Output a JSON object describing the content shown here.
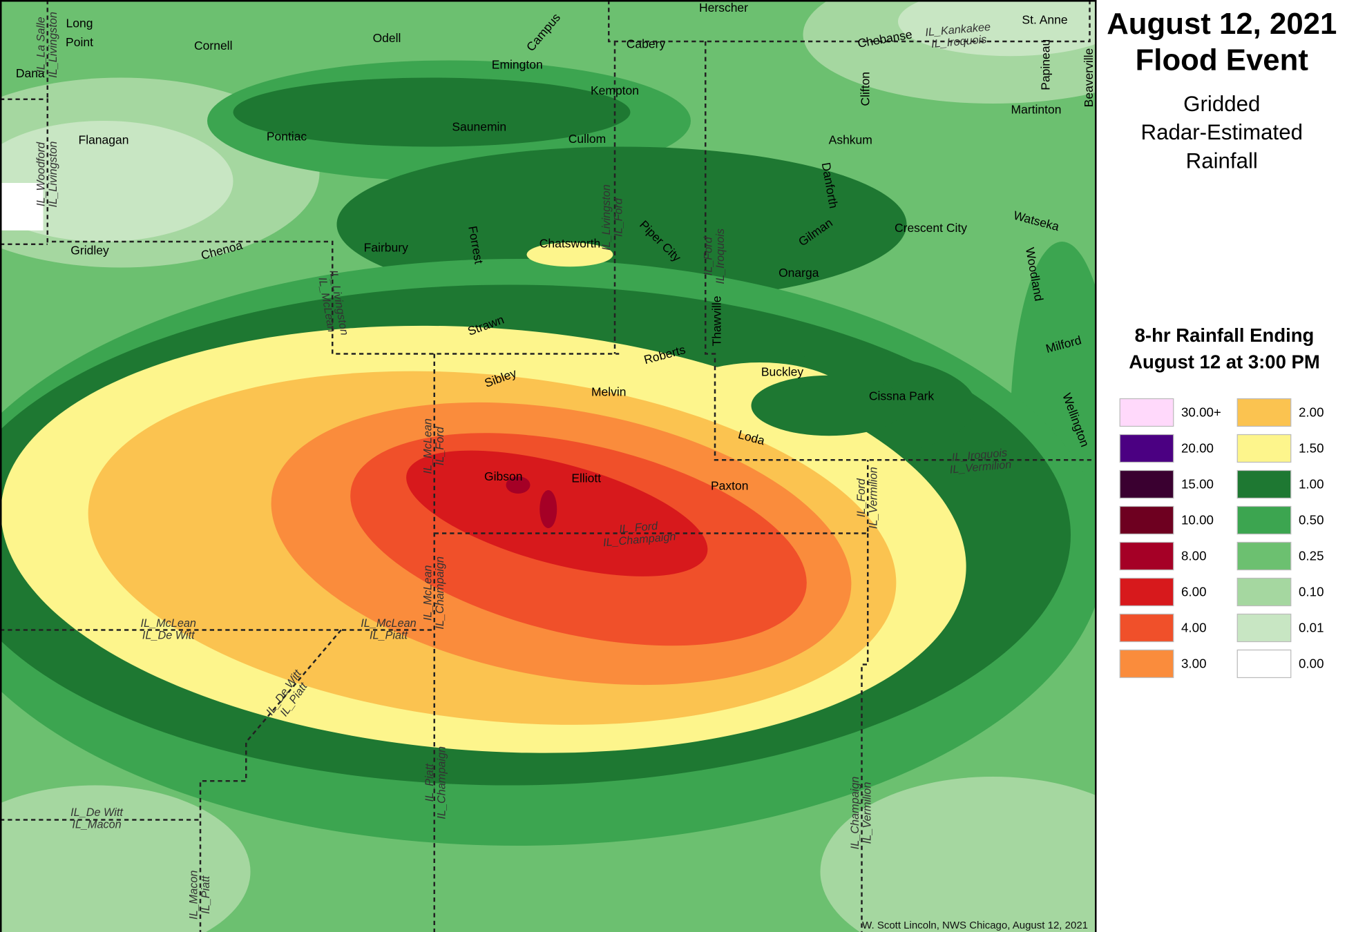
{
  "header": {
    "title_lines": [
      "August 12, 2021",
      "Flood Event"
    ],
    "subtitle_lines": [
      "Gridded",
      "Radar-Estimated",
      "Rainfall"
    ]
  },
  "legend": {
    "title_lines": [
      "8-hr Rainfall Ending",
      "August 12 at 3:00 PM"
    ],
    "entries": [
      {
        "label": "30.00+",
        "color": "#ffd9fb"
      },
      {
        "label": "20.00",
        "color": "#4b0082"
      },
      {
        "label": "15.00",
        "color": "#3a0030"
      },
      {
        "label": "10.00",
        "color": "#6e0020"
      },
      {
        "label": "8.00",
        "color": "#a50026"
      },
      {
        "label": "6.00",
        "color": "#d7191c"
      },
      {
        "label": "4.00",
        "color": "#f0502a"
      },
      {
        "label": "3.00",
        "color": "#fa8c3c"
      },
      {
        "label": "2.00",
        "color": "#fbc350"
      },
      {
        "label": "1.50",
        "color": "#fdf58c"
      },
      {
        "label": "1.00",
        "color": "#1e7832"
      },
      {
        "label": "0.50",
        "color": "#3ca550"
      },
      {
        "label": "0.25",
        "color": "#6cc070"
      },
      {
        "label": "0.10",
        "color": "#a5d7a0"
      },
      {
        "label": "0.01",
        "color": "#c8e6c3"
      },
      {
        "label": "0.00",
        "color": "#ffffff"
      }
    ]
  },
  "map": {
    "towns": [
      "Herscher",
      "St. Anne",
      "Long",
      "Point",
      "Dana",
      "Cornell",
      "Odell",
      "Campus",
      "Emington",
      "Cabery",
      "Chebanse",
      "Papineau",
      "Beaverville",
      "Kempton",
      "Martinton",
      "Clifton",
      "Flanagan",
      "Pontiac",
      "Saunemin",
      "Cullom",
      "Ashkum",
      "Danforth",
      "Watseka",
      "Crescent City",
      "Gilman",
      "Woodland",
      "Gridley",
      "Chenoa",
      "Fairbury",
      "Forrest",
      "Chatsworth",
      "Piper City",
      "Onarga",
      "Thawville",
      "Strawn",
      "Roberts",
      "Milford",
      "Buckley",
      "Sibley",
      "Melvin",
      "Cissna Park",
      "Wellington",
      "Loda",
      "Gibson",
      "Elliott",
      "Paxton"
    ],
    "county_labels": [
      [
        "IL_La Salle",
        "IL_Livingston"
      ],
      [
        "IL_Kankakee",
        "IL_Iroquois"
      ],
      [
        "IL_Woodford",
        "IL_Livingston"
      ],
      [
        "IL_Livingston",
        "IL_McLean"
      ],
      [
        "IL_Livingston",
        "IL_Ford"
      ],
      [
        "IL_Ford",
        "IL_Iroquois"
      ],
      [
        "IL_Iroquois",
        "IL_Vermilion"
      ],
      [
        "IL_Ford",
        "IL_Vermilion"
      ],
      [
        "IL_McLean",
        "IL_Ford"
      ],
      [
        "IL_Ford",
        "IL_Champaign"
      ],
      [
        "IL_McLean",
        "IL_Champaign"
      ],
      [
        "IL_McLean",
        "IL_De Witt"
      ],
      [
        "IL_McLean",
        "IL_Piatt"
      ],
      [
        "IL_De Witt",
        "IL_Piatt"
      ],
      [
        "IL_Piatt",
        "IL_Champaign"
      ],
      [
        "IL_De Witt",
        "IL_Macon"
      ],
      [
        "IL_Macon",
        "IL_Piatt"
      ],
      [
        "IL_Champaign",
        "IL_Vermilion"
      ]
    ],
    "credit": "W. Scott Lincoln, NWS Chicago, August 12, 2021"
  }
}
